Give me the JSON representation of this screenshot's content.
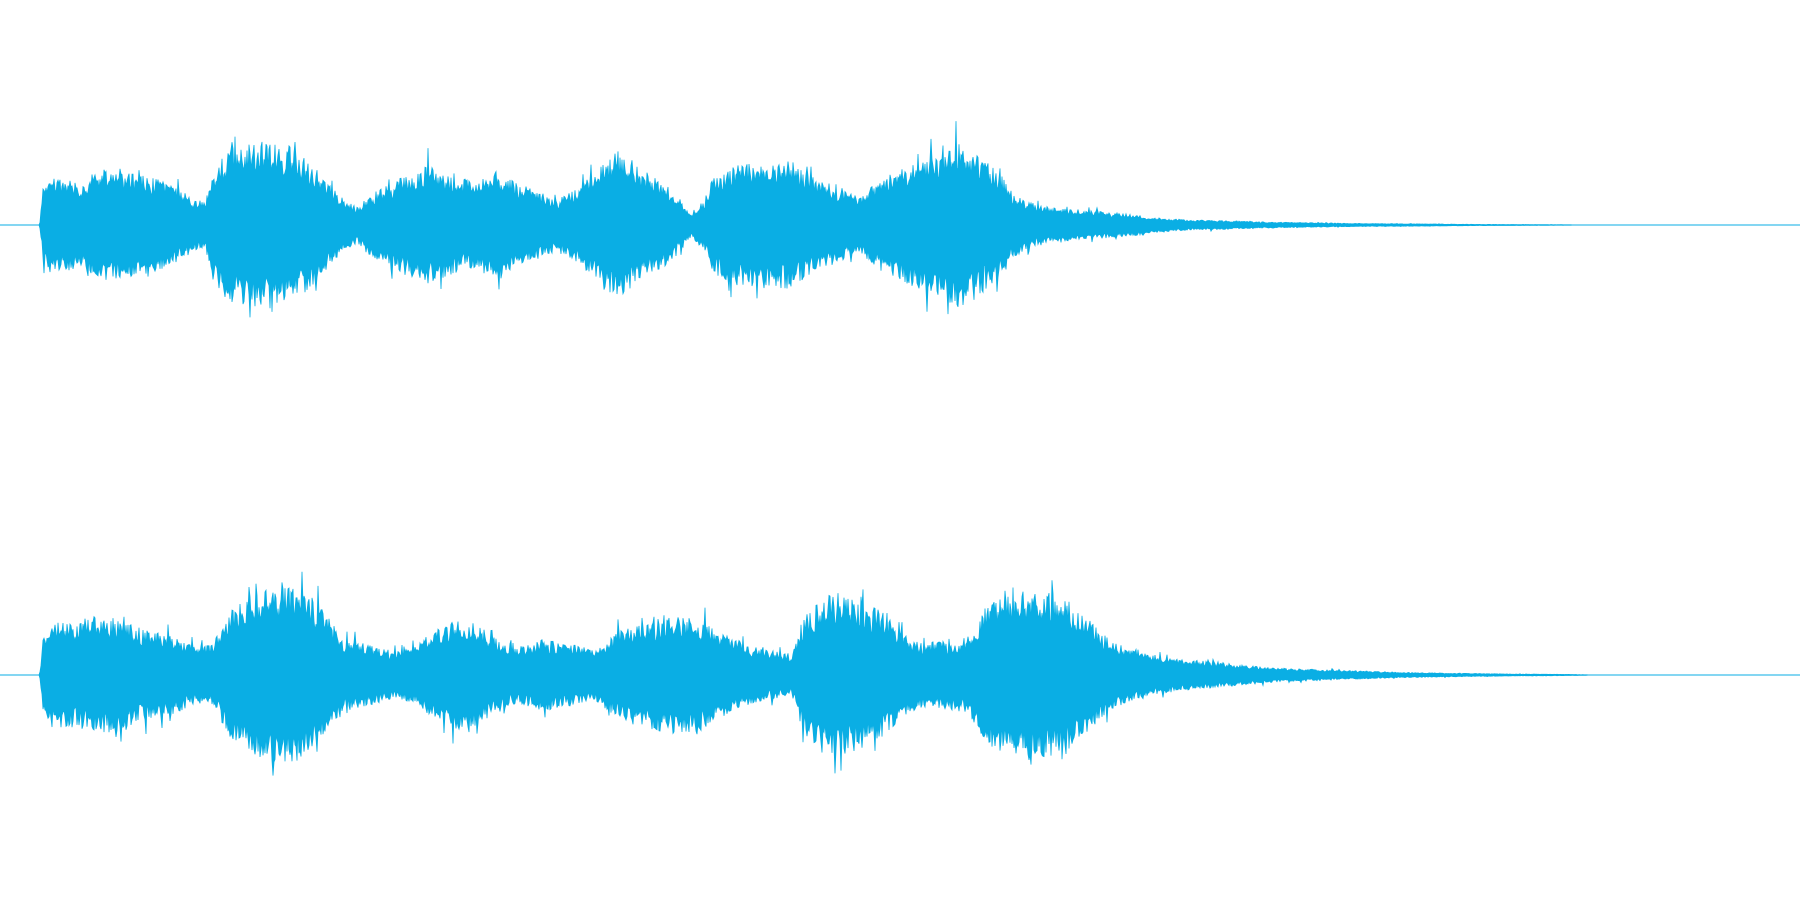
{
  "waveform": {
    "color": "#0aaee4",
    "channels": [
      {
        "id": "channel-1",
        "envelope": [
          [
            0.0,
            0.0
          ],
          [
            0.022,
            0.0
          ],
          [
            0.024,
            0.3
          ],
          [
            0.028,
            0.38
          ],
          [
            0.034,
            0.36
          ],
          [
            0.046,
            0.34
          ],
          [
            0.058,
            0.44
          ],
          [
            0.074,
            0.4
          ],
          [
            0.092,
            0.34
          ],
          [
            0.108,
            0.2
          ],
          [
            0.114,
            0.18
          ],
          [
            0.118,
            0.42
          ],
          [
            0.126,
            0.58
          ],
          [
            0.14,
            0.64
          ],
          [
            0.152,
            0.66
          ],
          [
            0.164,
            0.6
          ],
          [
            0.176,
            0.44
          ],
          [
            0.19,
            0.22
          ],
          [
            0.198,
            0.14
          ],
          [
            0.206,
            0.24
          ],
          [
            0.222,
            0.36
          ],
          [
            0.238,
            0.46
          ],
          [
            0.25,
            0.4
          ],
          [
            0.262,
            0.34
          ],
          [
            0.276,
            0.42
          ],
          [
            0.288,
            0.32
          ],
          [
            0.3,
            0.26
          ],
          [
            0.31,
            0.2
          ],
          [
            0.322,
            0.3
          ],
          [
            0.334,
            0.5
          ],
          [
            0.344,
            0.56
          ],
          [
            0.356,
            0.44
          ],
          [
            0.368,
            0.34
          ],
          [
            0.378,
            0.2
          ],
          [
            0.384,
            0.1
          ],
          [
            0.392,
            0.2
          ],
          [
            0.396,
            0.4
          ],
          [
            0.41,
            0.48
          ],
          [
            0.426,
            0.5
          ],
          [
            0.44,
            0.5
          ],
          [
            0.45,
            0.38
          ],
          [
            0.466,
            0.3
          ],
          [
            0.476,
            0.22
          ],
          [
            0.49,
            0.36
          ],
          [
            0.504,
            0.46
          ],
          [
            0.518,
            0.56
          ],
          [
            0.532,
            0.64
          ],
          [
            0.54,
            0.6
          ],
          [
            0.548,
            0.5
          ],
          [
            0.556,
            0.4
          ],
          [
            0.562,
            0.26
          ],
          [
            0.572,
            0.18
          ],
          [
            0.584,
            0.14
          ],
          [
            0.6,
            0.12
          ],
          [
            0.616,
            0.1
          ],
          [
            0.632,
            0.08
          ],
          [
            0.64,
            0.06
          ],
          [
            0.66,
            0.04
          ],
          [
            0.68,
            0.035
          ],
          [
            0.7,
            0.025
          ],
          [
            0.72,
            0.02
          ],
          [
            0.74,
            0.015
          ],
          [
            0.76,
            0.012
          ],
          [
            0.78,
            0.01
          ],
          [
            0.8,
            0.008
          ],
          [
            0.82,
            0.005
          ],
          [
            0.84,
            0.004
          ],
          [
            0.86,
            0.003
          ],
          [
            0.873,
            0.002
          ],
          [
            0.874,
            0.0
          ],
          [
            1.0,
            0.0
          ]
        ]
      },
      {
        "id": "channel-2",
        "envelope": [
          [
            0.0,
            0.0
          ],
          [
            0.022,
            0.0
          ],
          [
            0.024,
            0.3
          ],
          [
            0.03,
            0.42
          ],
          [
            0.04,
            0.4
          ],
          [
            0.052,
            0.46
          ],
          [
            0.064,
            0.44
          ],
          [
            0.08,
            0.36
          ],
          [
            0.096,
            0.32
          ],
          [
            0.108,
            0.22
          ],
          [
            0.118,
            0.24
          ],
          [
            0.13,
            0.54
          ],
          [
            0.142,
            0.64
          ],
          [
            0.156,
            0.7
          ],
          [
            0.168,
            0.66
          ],
          [
            0.18,
            0.5
          ],
          [
            0.19,
            0.28
          ],
          [
            0.204,
            0.24
          ],
          [
            0.22,
            0.18
          ],
          [
            0.232,
            0.24
          ],
          [
            0.248,
            0.4
          ],
          [
            0.262,
            0.44
          ],
          [
            0.274,
            0.3
          ],
          [
            0.288,
            0.22
          ],
          [
            0.302,
            0.28
          ],
          [
            0.318,
            0.24
          ],
          [
            0.33,
            0.2
          ],
          [
            0.344,
            0.34
          ],
          [
            0.358,
            0.42
          ],
          [
            0.374,
            0.46
          ],
          [
            0.388,
            0.44
          ],
          [
            0.402,
            0.32
          ],
          [
            0.418,
            0.22
          ],
          [
            0.432,
            0.18
          ],
          [
            0.44,
            0.16
          ],
          [
            0.446,
            0.44
          ],
          [
            0.456,
            0.6
          ],
          [
            0.466,
            0.64
          ],
          [
            0.478,
            0.58
          ],
          [
            0.49,
            0.5
          ],
          [
            0.5,
            0.34
          ],
          [
            0.51,
            0.26
          ],
          [
            0.522,
            0.26
          ],
          [
            0.532,
            0.28
          ],
          [
            0.538,
            0.3
          ],
          [
            0.548,
            0.54
          ],
          [
            0.56,
            0.62
          ],
          [
            0.572,
            0.66
          ],
          [
            0.584,
            0.64
          ],
          [
            0.596,
            0.56
          ],
          [
            0.606,
            0.42
          ],
          [
            0.618,
            0.26
          ],
          [
            0.632,
            0.2
          ],
          [
            0.646,
            0.14
          ],
          [
            0.66,
            0.12
          ],
          [
            0.676,
            0.1
          ],
          [
            0.69,
            0.08
          ],
          [
            0.704,
            0.06
          ],
          [
            0.72,
            0.05
          ],
          [
            0.74,
            0.04
          ],
          [
            0.76,
            0.03
          ],
          [
            0.78,
            0.02
          ],
          [
            0.8,
            0.016
          ],
          [
            0.82,
            0.012
          ],
          [
            0.84,
            0.008
          ],
          [
            0.86,
            0.006
          ],
          [
            0.875,
            0.004
          ],
          [
            0.882,
            0.002
          ],
          [
            0.883,
            0.0
          ],
          [
            1.0,
            0.0
          ]
        ]
      }
    ]
  }
}
